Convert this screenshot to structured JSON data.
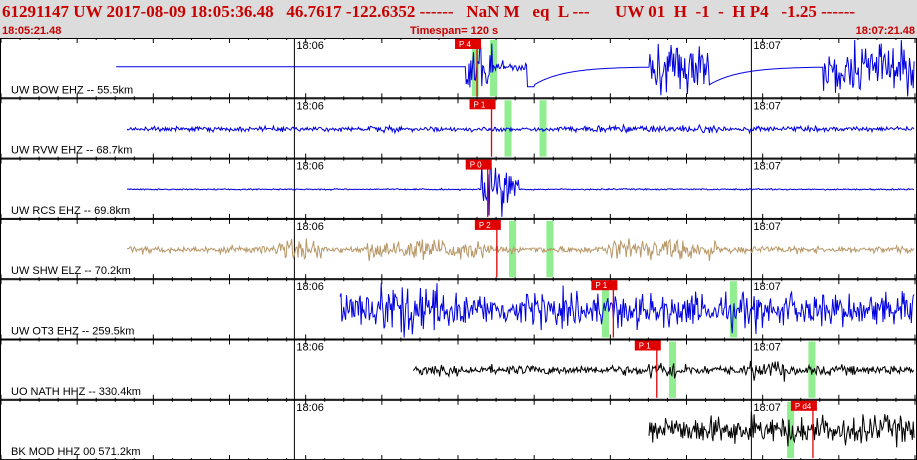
{
  "header": {
    "title": "61291147 UW 2017-08-09 18:05:36.48   46.7617 -122.6352 ------   NaN M   eq  L ---      UW 01  H  -1  -  H P4   -1.25 ------",
    "start_time": "18:05:21.48",
    "timespan": "Timespan= 120 s",
    "end_time": "18:07:21.48"
  },
  "colors": {
    "header_bg": "#dcdcdc",
    "header_text": "#c80000",
    "pick_red": "#e00000",
    "pick_green": "#90ee90",
    "blue_trace": "#0000e0",
    "tan_trace": "#b89868",
    "black_trace": "#000000"
  },
  "channels": [
    {
      "label": "UW BOW EHZ -- 55.5km",
      "pick": "P 4",
      "color": "#0000e0",
      "minute_labels": [
        "18:06",
        "18:07"
      ],
      "pick_s": 62.5,
      "green_s": [
        62.2,
        64.6
      ]
    },
    {
      "label": "UW RVW EHZ -- 68.7km",
      "pick": "P 1",
      "color": "#0000e0",
      "minute_labels": [
        "18:06",
        "18:07"
      ],
      "pick_s": 64.4,
      "green_s": [
        66.5,
        71.1
      ]
    },
    {
      "label": "UW RCS EHZ -- 69.8km",
      "pick": "P 0",
      "color": "#0000e0",
      "minute_labels": [
        "18:06",
        "18:07"
      ],
      "pick_s": 63.9,
      "green_s": []
    },
    {
      "label": "UW SHW ELZ -- 70.2km",
      "pick": "P 2",
      "color": "#b89868",
      "minute_labels": [
        "18:06",
        "18:07"
      ],
      "pick_s": 65.1,
      "green_s": [
        67.1,
        72.0
      ]
    },
    {
      "label": "UW OT3 EHZ -- 259.5km",
      "pick": "P 1",
      "color": "#0000e0",
      "minute_labels": [
        "18:06",
        "18:07"
      ],
      "pick_s": 80.4,
      "green_s": [
        79.3,
        96.1
      ]
    },
    {
      "label": "UO NATH HHZ -- 330.4km",
      "pick": "P 1",
      "color": "#000000",
      "minute_labels": [
        "18:06",
        "18:07"
      ],
      "pick_s": 86.1,
      "green_s": [
        88.1,
        106.4
      ]
    },
    {
      "label": "BK MOD HHZ 00 571.2km",
      "pick": "P d4",
      "color": "#000000",
      "minute_labels": [
        "18:06",
        "18:07"
      ],
      "pick_s": 106.6,
      "green_s": [
        103.6
      ]
    }
  ]
}
